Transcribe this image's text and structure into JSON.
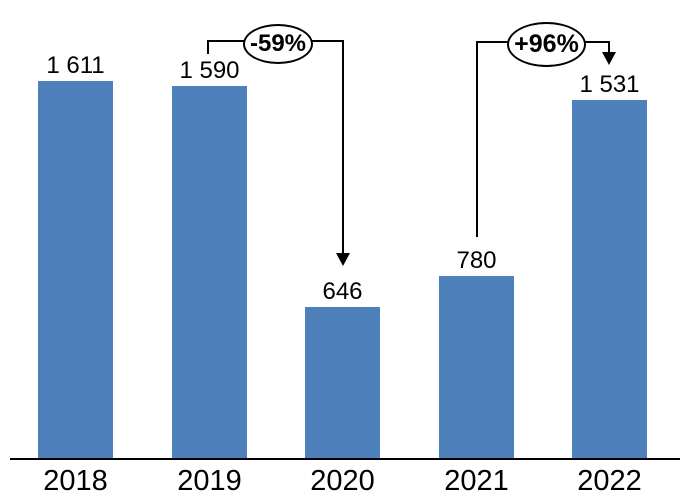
{
  "chart_data": {
    "type": "bar",
    "categories": [
      "2018",
      "2019",
      "2020",
      "2021",
      "2022"
    ],
    "values": [
      1611,
      1590,
      646,
      780,
      1531
    ],
    "value_labels": [
      "1 611",
      "1 590",
      "646",
      "780",
      "1 531"
    ],
    "title": "",
    "xlabel": "",
    "ylabel": "",
    "ylim": [
      0,
      1914
    ],
    "gridlines": false,
    "legend_position": "none",
    "bar_color": "#4E80BC",
    "axis_line_color": "#000000",
    "annotation_text_color": "#000000",
    "annotations": [
      {
        "label": "-59%",
        "from": "2019",
        "to": "2020",
        "direction": "decrease"
      },
      {
        "label": "+96%",
        "from": "2021",
        "to": "2022",
        "direction": "increase"
      }
    ]
  }
}
